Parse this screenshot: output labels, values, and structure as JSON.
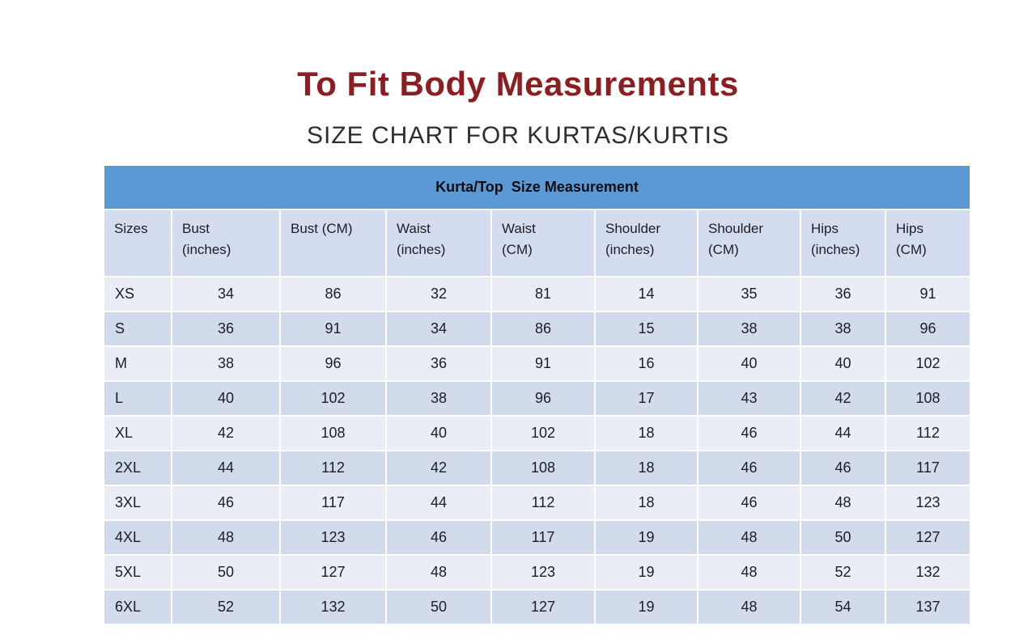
{
  "page": {
    "title": "To Fit Body Measurements",
    "subtitle": "SIZE CHART FOR KURTAS/KURTIS"
  },
  "table": {
    "banner": "Kurta/Top  Size Measurement",
    "columns_display": [
      "Sizes",
      "Bust\n(inches)",
      "Bust (CM)",
      "Waist\n(inches)",
      "Waist\n(CM)",
      "Shoulder\n(inches)",
      "Shoulder\n(CM)",
      "Hips\n(inches)",
      "Hips\n(CM)"
    ]
  },
  "colors": {
    "banner_bg": "#5b99d5",
    "header_bg": "#d4ddef",
    "row_light": "#eaedf6",
    "row_blue": "#d1dbeb",
    "title_color": "#8c1d21",
    "subtitle_color": "#2e2e2e",
    "text_color": "#1d1d27",
    "grid_color": "#ffffff"
  },
  "chart_data": {
    "type": "table",
    "title": "To Fit Body Measurements",
    "subtitle": "SIZE CHART FOR KURTAS/KURTIS",
    "banner": "Kurta/Top  Size Measurement",
    "columns": [
      "Sizes",
      "Bust (inches)",
      "Bust (CM)",
      "Waist (inches)",
      "Waist (CM)",
      "Shoulder (inches)",
      "Shoulder (CM)",
      "Hips (inches)",
      "Hips (CM)"
    ],
    "rows": [
      [
        "XS",
        34,
        86,
        32,
        81,
        14,
        35,
        36,
        91
      ],
      [
        "S",
        36,
        91,
        34,
        86,
        15,
        38,
        38,
        96
      ],
      [
        "M",
        38,
        96,
        36,
        91,
        16,
        40,
        40,
        102
      ],
      [
        "L",
        40,
        102,
        38,
        96,
        17,
        43,
        42,
        108
      ],
      [
        "XL",
        42,
        108,
        40,
        102,
        18,
        46,
        44,
        112
      ],
      [
        "2XL",
        44,
        112,
        42,
        108,
        18,
        46,
        46,
        117
      ],
      [
        "3XL",
        46,
        117,
        44,
        112,
        18,
        46,
        48,
        123
      ],
      [
        "4XL",
        48,
        123,
        46,
        117,
        19,
        48,
        50,
        127
      ],
      [
        "5XL",
        50,
        127,
        48,
        123,
        19,
        48,
        52,
        132
      ],
      [
        "6XL",
        52,
        132,
        50,
        127,
        19,
        48,
        54,
        137
      ]
    ]
  }
}
